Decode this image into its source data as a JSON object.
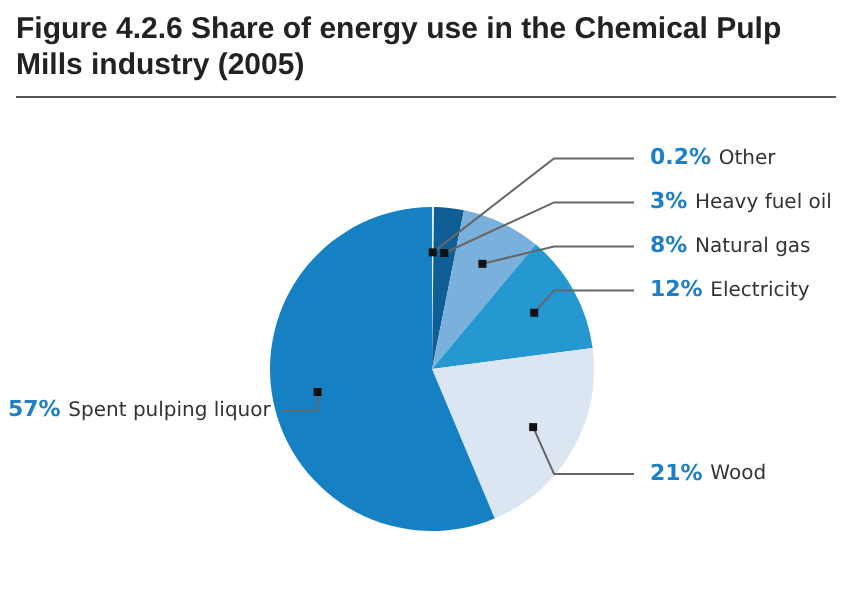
{
  "chart_data": {
    "type": "pie",
    "title": "Figure 4.2.6 Share of energy use in the Chemical Pulp Mills industry (2005)",
    "categories": [
      "Other",
      "Heavy fuel oil",
      "Natural gas",
      "Electricity",
      "Wood",
      "Spent pulping liquor"
    ],
    "values": [
      0.2,
      3,
      8,
      12,
      21,
      57
    ],
    "value_labels": [
      "0.2%",
      "3%",
      "8%",
      "12%",
      "21%",
      "57%"
    ],
    "colors": [
      "#e3ecf6",
      "#0f5f96",
      "#7ab0dc",
      "#2597d1",
      "#dce6f2",
      "#1580c2"
    ],
    "legend": false
  }
}
